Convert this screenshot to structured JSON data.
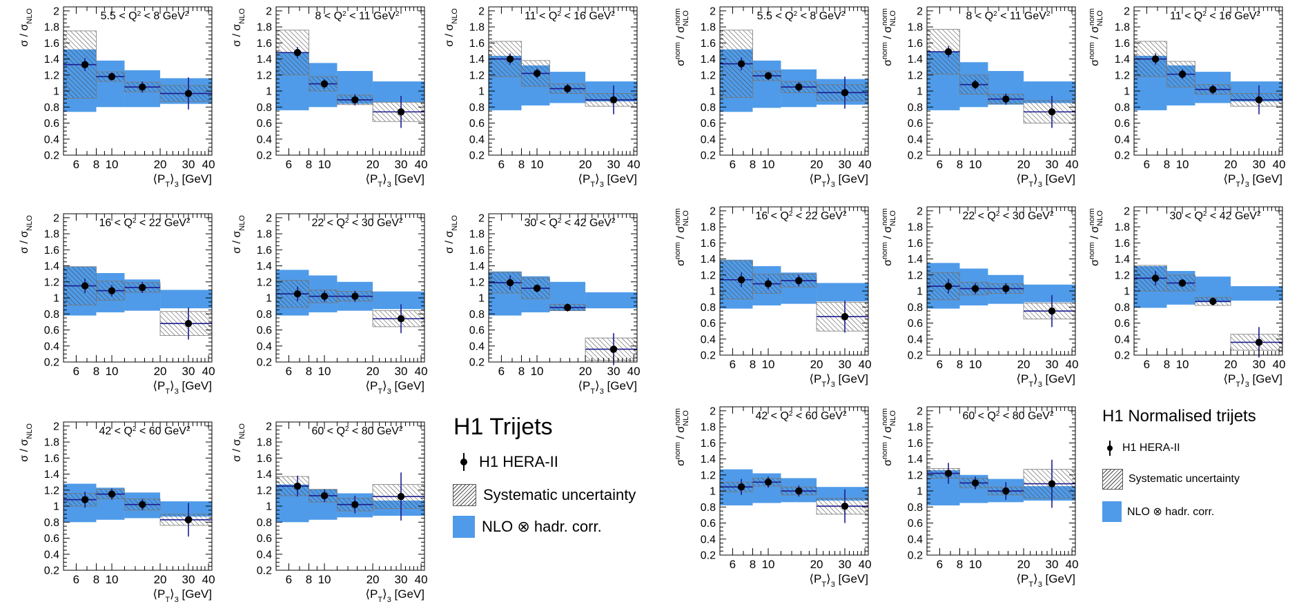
{
  "colors": {
    "band": "#4f9be9",
    "data_point": "#000000",
    "error_bar": "#1b1b8f",
    "hatch": "#444444"
  },
  "common": {
    "x_ticks": [
      6,
      8,
      10,
      20,
      30,
      40
    ],
    "y_ticks": [
      "0.2",
      "0.4",
      "0.6",
      "0.8",
      "1",
      "1.2",
      "1.4",
      "1.6",
      "1.8",
      "2"
    ],
    "x_edges": [
      5,
      8,
      12,
      20,
      42
    ],
    "x_centers": [
      6.8,
      10,
      15.5,
      30
    ]
  },
  "legend_left": {
    "title": "H1 Trijets",
    "data": "H1 HERA-II",
    "syst": "Systematic uncertainty",
    "nlo": "NLO ⊗ hadr. corr."
  },
  "legend_right": {
    "title": "H1 Normalised trijets",
    "data": "H1 HERA-II",
    "syst": "Systematic uncertainty",
    "nlo": "NLO ⊗ hadr. corr."
  },
  "chart_data": [
    {
      "type": "bar",
      "group": "trijets",
      "label_pre": "5.5 < Q",
      "label_post": " < 8 GeV",
      "xlabel": "⟨P_T⟩_3 [GeV]",
      "ylabel": "σ / σ_NLO",
      "ylim": [
        0.2,
        2.05
      ],
      "x": [
        6.8,
        10,
        15.5,
        30
      ],
      "values": [
        1.33,
        1.18,
        1.05,
        0.97
      ],
      "err": [
        0.08,
        0.05,
        0.07,
        0.2
      ],
      "syst": [
        0.42,
        0.06,
        0.06,
        0.1
      ],
      "nlo_lo": [
        0.74,
        0.8,
        0.8,
        0.84
      ],
      "nlo_hi": [
        1.52,
        1.38,
        1.26,
        1.16
      ]
    },
    {
      "type": "bar",
      "group": "trijets",
      "label_pre": "8 < Q",
      "label_post": " < 11 GeV",
      "xlabel": "⟨P_T⟩_3 [GeV]",
      "ylabel": "σ / σ_NLO",
      "ylim": [
        0.2,
        2.05
      ],
      "x": [
        6.8,
        10,
        15.5,
        30
      ],
      "values": [
        1.48,
        1.09,
        0.89,
        0.74
      ],
      "err": [
        0.07,
        0.06,
        0.07,
        0.2
      ],
      "syst": [
        0.28,
        0.09,
        0.06,
        0.12
      ],
      "nlo_lo": [
        0.76,
        0.8,
        0.84,
        0.86
      ],
      "nlo_hi": [
        1.48,
        1.35,
        1.25,
        1.12
      ]
    },
    {
      "type": "bar",
      "group": "trijets",
      "label_pre": "11 < Q",
      "label_post": " < 16 GeV",
      "xlabel": "⟨P_T⟩_3 [GeV]",
      "ylabel": "σ / σ_NLO",
      "ylim": [
        0.2,
        2.05
      ],
      "x": [
        6.8,
        10,
        15.5,
        30
      ],
      "values": [
        1.4,
        1.22,
        1.03,
        0.89
      ],
      "err": [
        0.07,
        0.06,
        0.06,
        0.18
      ],
      "syst": [
        0.22,
        0.16,
        0.06,
        0.08
      ],
      "nlo_lo": [
        0.76,
        0.82,
        0.85,
        0.87
      ],
      "nlo_hi": [
        1.44,
        1.32,
        1.24,
        1.12
      ]
    },
    {
      "type": "bar",
      "group": "trijets",
      "label_pre": "16 < Q",
      "label_post": " < 22 GeV",
      "xlabel": "⟨P_T⟩_3 [GeV]",
      "ylabel": "σ / σ_NLO",
      "ylim": [
        0.2,
        2.05
      ],
      "x": [
        6.8,
        10,
        15.5,
        30
      ],
      "values": [
        1.15,
        1.09,
        1.13,
        0.68
      ],
      "err": [
        0.09,
        0.07,
        0.07,
        0.2
      ],
      "syst": [
        0.24,
        0.12,
        0.06,
        0.15
      ],
      "nlo_lo": [
        0.78,
        0.82,
        0.84,
        0.87
      ],
      "nlo_hi": [
        1.39,
        1.31,
        1.23,
        1.1
      ]
    },
    {
      "type": "bar",
      "group": "trijets",
      "label_pre": "22 < Q",
      "label_post": " < 30 GeV",
      "xlabel": "⟨P_T⟩_3 [GeV]",
      "ylabel": "σ / σ_NLO",
      "ylim": [
        0.2,
        2.05
      ],
      "x": [
        6.8,
        10,
        15.5,
        30
      ],
      "values": [
        1.05,
        1.02,
        1.02,
        0.74
      ],
      "err": [
        0.09,
        0.07,
        0.07,
        0.18
      ],
      "syst": [
        0.17,
        0.08,
        0.06,
        0.1
      ],
      "nlo_lo": [
        0.78,
        0.82,
        0.84,
        0.86
      ],
      "nlo_hi": [
        1.35,
        1.28,
        1.2,
        1.08
      ]
    },
    {
      "type": "bar",
      "group": "trijets",
      "label_pre": "30 < Q",
      "label_post": " < 42 GeV",
      "xlabel": "⟨P_T⟩_3 [GeV]",
      "ylabel": "σ / σ_NLO",
      "ylim": [
        0.2,
        2.05
      ],
      "x": [
        6.8,
        10,
        15.5,
        30
      ],
      "values": [
        1.19,
        1.12,
        0.88,
        0.36
      ],
      "err": [
        0.09,
        0.05,
        0.05,
        0.2
      ],
      "syst": [
        0.13,
        0.13,
        0.04,
        0.14
      ],
      "nlo_lo": [
        0.78,
        0.82,
        0.84,
        0.87
      ],
      "nlo_hi": [
        1.33,
        1.27,
        1.2,
        1.07
      ]
    },
    {
      "type": "bar",
      "group": "trijets",
      "label_pre": "42 < Q",
      "label_post": " < 60 GeV",
      "xlabel": "⟨P_T⟩_3 [GeV]",
      "ylabel": "σ / σ_NLO",
      "ylim": [
        0.2,
        2.05
      ],
      "x": [
        6.8,
        10,
        15.5,
        30
      ],
      "values": [
        1.08,
        1.15,
        1.02,
        0.83
      ],
      "err": [
        0.1,
        0.07,
        0.07,
        0.21
      ],
      "syst": [
        0.08,
        0.06,
        0.07,
        0.07
      ],
      "nlo_lo": [
        0.8,
        0.83,
        0.85,
        0.87
      ],
      "nlo_hi": [
        1.28,
        1.23,
        1.17,
        1.06
      ]
    },
    {
      "type": "bar",
      "group": "trijets",
      "label_pre": "60 < Q",
      "label_post": " < 80 GeV",
      "xlabel": "⟨P_T⟩_3 [GeV]",
      "ylabel": "σ / σ_NLO",
      "ylim": [
        0.2,
        2.05
      ],
      "x": [
        6.8,
        10,
        15.5,
        30
      ],
      "values": [
        1.25,
        1.13,
        1.02,
        1.12
      ],
      "err": [
        0.13,
        0.08,
        0.11,
        0.3
      ],
      "syst": [
        0.12,
        0.08,
        0.08,
        0.15
      ],
      "nlo_lo": [
        0.8,
        0.83,
        0.86,
        0.88
      ],
      "nlo_hi": [
        1.27,
        1.21,
        1.16,
        1.07
      ]
    },
    {
      "type": "bar",
      "group": "normalised",
      "label_pre": "5.5 < Q",
      "label_post": " < 8 GeV",
      "xlabel": "⟨P_T⟩_3 [GeV]",
      "ylabel": "σnorm / σnorm_NLO",
      "ylim": [
        0.2,
        2.05
      ],
      "x": [
        6.8,
        10,
        15.5,
        30
      ],
      "values": [
        1.34,
        1.19,
        1.05,
        0.98
      ],
      "err": [
        0.08,
        0.05,
        0.06,
        0.2
      ],
      "syst": [
        0.42,
        0.06,
        0.07,
        0.1
      ],
      "nlo_lo": [
        0.74,
        0.79,
        0.8,
        0.83
      ],
      "nlo_hi": [
        1.52,
        1.38,
        1.27,
        1.15
      ]
    },
    {
      "type": "bar",
      "group": "normalised",
      "label_pre": "8 < Q",
      "label_post": " < 11 GeV",
      "xlabel": "⟨P_T⟩_3 [GeV]",
      "ylabel": "σnorm / σnorm_NLO",
      "ylim": [
        0.2,
        2.05
      ],
      "x": [
        6.8,
        10,
        15.5,
        30
      ],
      "values": [
        1.49,
        1.08,
        0.9,
        0.74
      ],
      "err": [
        0.07,
        0.06,
        0.07,
        0.2
      ],
      "syst": [
        0.28,
        0.12,
        0.06,
        0.14
      ],
      "nlo_lo": [
        0.76,
        0.8,
        0.83,
        0.85
      ],
      "nlo_hi": [
        1.49,
        1.36,
        1.25,
        1.12
      ]
    },
    {
      "type": "bar",
      "group": "normalised",
      "label_pre": "11 < Q",
      "label_post": " < 16 GeV",
      "xlabel": "⟨P_T⟩_3 [GeV]",
      "ylabel": "σnorm / σnorm_NLO",
      "ylim": [
        0.2,
        2.05
      ],
      "x": [
        6.8,
        10,
        15.5,
        30
      ],
      "values": [
        1.4,
        1.21,
        1.02,
        0.89
      ],
      "err": [
        0.07,
        0.06,
        0.06,
        0.18
      ],
      "syst": [
        0.22,
        0.16,
        0.06,
        0.08
      ],
      "nlo_lo": [
        0.76,
        0.82,
        0.85,
        0.87
      ],
      "nlo_hi": [
        1.44,
        1.32,
        1.24,
        1.12
      ]
    },
    {
      "type": "bar",
      "group": "normalised",
      "label_pre": "16 < Q",
      "label_post": " < 22 GeV",
      "xlabel": "⟨P_T⟩_3 [GeV]",
      "ylabel": "σnorm / σnorm_NLO",
      "ylim": [
        0.2,
        2.05
      ],
      "x": [
        6.8,
        10,
        15.5,
        30
      ],
      "values": [
        1.14,
        1.09,
        1.13,
        0.68
      ],
      "err": [
        0.09,
        0.07,
        0.07,
        0.2
      ],
      "syst": [
        0.24,
        0.12,
        0.08,
        0.18
      ],
      "nlo_lo": [
        0.78,
        0.82,
        0.84,
        0.87
      ],
      "nlo_hi": [
        1.39,
        1.31,
        1.23,
        1.1
      ]
    },
    {
      "type": "bar",
      "group": "normalised",
      "label_pre": "22 < Q",
      "label_post": " < 30 GeV",
      "xlabel": "⟨P_T⟩_3 [GeV]",
      "ylabel": "σnorm / σnorm_NLO",
      "ylim": [
        0.2,
        2.05
      ],
      "x": [
        6.8,
        10,
        15.5,
        30
      ],
      "values": [
        1.06,
        1.03,
        1.03,
        0.75
      ],
      "err": [
        0.09,
        0.07,
        0.07,
        0.2
      ],
      "syst": [
        0.17,
        0.08,
        0.06,
        0.1
      ],
      "nlo_lo": [
        0.78,
        0.82,
        0.84,
        0.86
      ],
      "nlo_hi": [
        1.35,
        1.28,
        1.2,
        1.08
      ]
    },
    {
      "type": "bar",
      "group": "normalised",
      "label_pre": "30 < Q",
      "label_post": " < 42 GeV",
      "xlabel": "⟨P_T⟩_3 [GeV]",
      "ylabel": "σnorm / σnorm_NLO",
      "ylim": [
        0.2,
        2.05
      ],
      "x": [
        6.8,
        10,
        15.5,
        30
      ],
      "values": [
        1.16,
        1.1,
        0.87,
        0.36
      ],
      "err": [
        0.09,
        0.05,
        0.05,
        0.19
      ],
      "syst": [
        0.16,
        0.1,
        0.05,
        0.1
      ],
      "nlo_lo": [
        0.79,
        0.83,
        0.86,
        0.88
      ],
      "nlo_hi": [
        1.31,
        1.25,
        1.18,
        1.06
      ]
    },
    {
      "type": "bar",
      "group": "normalised",
      "label_pre": "42 < Q",
      "label_post": " < 60 GeV",
      "xlabel": "⟨P_T⟩_3 [GeV]",
      "ylabel": "σnorm / σnorm_NLO",
      "ylim": [
        0.2,
        2.05
      ],
      "x": [
        6.8,
        10,
        15.5,
        30
      ],
      "values": [
        1.05,
        1.11,
        1.0,
        0.81
      ],
      "err": [
        0.1,
        0.07,
        0.07,
        0.21
      ],
      "syst": [
        0.06,
        0.05,
        0.05,
        0.1
      ],
      "nlo_lo": [
        0.82,
        0.85,
        0.86,
        0.88
      ],
      "nlo_hi": [
        1.27,
        1.22,
        1.16,
        1.05
      ]
    },
    {
      "type": "bar",
      "group": "normalised",
      "label_pre": "60 < Q",
      "label_post": " < 80 GeV",
      "xlabel": "⟨P_T⟩_3 [GeV]",
      "ylabel": "σnorm / σnorm_NLO",
      "ylim": [
        0.2,
        2.05
      ],
      "x": [
        6.8,
        10,
        15.5,
        30
      ],
      "values": [
        1.22,
        1.1,
        1.0,
        1.09
      ],
      "err": [
        0.13,
        0.08,
        0.11,
        0.3
      ],
      "syst": [
        0.06,
        0.06,
        0.05,
        0.18
      ],
      "nlo_lo": [
        0.82,
        0.85,
        0.86,
        0.88
      ],
      "nlo_hi": [
        1.26,
        1.2,
        1.15,
        1.06
      ]
    }
  ]
}
